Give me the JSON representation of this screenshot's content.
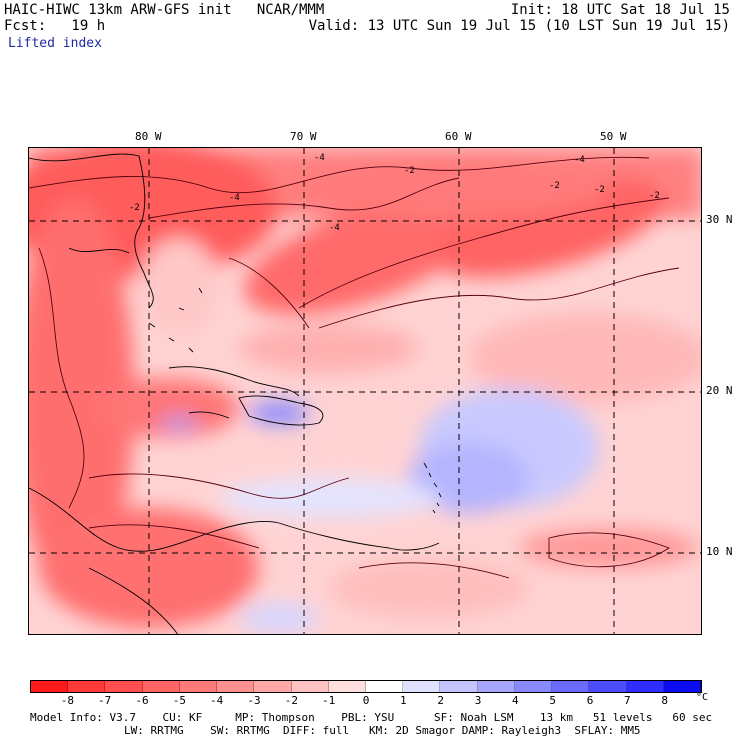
{
  "header": {
    "title": "HAIC-HIWC 13km ARW-GFS init   NCAR/MMM",
    "init": "Init: 18 UTC Sat 18 Jul 15",
    "fcst": "Fcst:   19 h",
    "valid": "Valid: 13 UTC Sun 19 Jul 15 (10 LST Sun 19 Jul 15)",
    "field": "Lifted index"
  },
  "map": {
    "lon_labels": [
      "80 W",
      "70 W",
      "60 W",
      "50 W"
    ],
    "lat_labels": [
      "30 N",
      "20 N",
      "10 N"
    ],
    "contour_labels": [
      "-4",
      "-2",
      "-2",
      "-4",
      "-2",
      "-4",
      "-2",
      "-4",
      "-2"
    ]
  },
  "colorbar": {
    "labels": [
      "-8",
      "-7",
      "-6",
      "-5",
      "-4",
      "-3",
      "-2",
      "-1",
      "0",
      "1",
      "2",
      "3",
      "4",
      "5",
      "6",
      "7",
      "8"
    ],
    "unit": "°C",
    "colors": [
      "#ff1a1a",
      "#ff3838",
      "#ff4e4e",
      "#ff6464",
      "#ff7a7a",
      "#ff9090",
      "#ffa8a8",
      "#ffc2c2",
      "#ffdede",
      "#ffffff",
      "#e0e0ff",
      "#c4c4ff",
      "#a6a6ff",
      "#8888ff",
      "#6a6aff",
      "#4c4cff",
      "#2e2eff",
      "#0c0cf0"
    ]
  },
  "footer": {
    "line1": "Model Info: V3.7    CU: KF     MP: Thompson    PBL: YSU      SF: Noah LSM    13 km   51 levels   60 sec",
    "line2": "LW: RRTMG    SW: RRTMG  DIFF: full   KM: 2D Smagor DAMP: Rayleigh3  SFLAY: MM5"
  }
}
